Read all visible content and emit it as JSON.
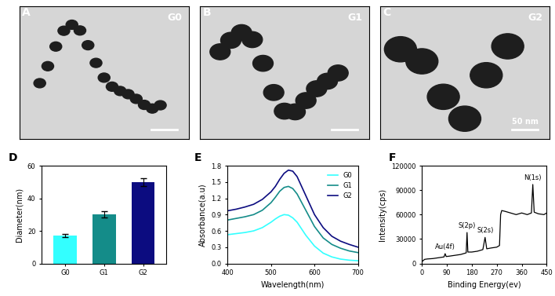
{
  "images": [
    {
      "panel": "A",
      "label": "G0"
    },
    {
      "panel": "B",
      "label": "G1"
    },
    {
      "panel": "C",
      "label": "G2",
      "scale_bar": "50 nm"
    }
  ],
  "chart_data": [
    {
      "type": "bar",
      "title": "D",
      "categories": [
        "G0",
        "G1",
        "G2"
      ],
      "values": [
        17,
        30,
        50
      ],
      "errors": [
        1,
        2,
        2.5
      ],
      "colors": [
        "#33ffff",
        "#148c89",
        "#0c0c80"
      ],
      "ylabel": "Diameter(nm)",
      "ylim": [
        0,
        60
      ],
      "yticks": [
        0,
        20,
        40,
        60
      ]
    },
    {
      "type": "line",
      "title": "E",
      "x": [
        400,
        420,
        440,
        460,
        480,
        500,
        510,
        520,
        530,
        540,
        550,
        560,
        580,
        600,
        620,
        640,
        660,
        680,
        700
      ],
      "series": [
        {
          "name": "G0",
          "color": "#33ffff",
          "values": [
            0.53,
            0.55,
            0.57,
            0.6,
            0.66,
            0.76,
            0.82,
            0.87,
            0.9,
            0.89,
            0.84,
            0.76,
            0.52,
            0.32,
            0.19,
            0.12,
            0.08,
            0.06,
            0.05
          ]
        },
        {
          "name": "G1",
          "color": "#148c89",
          "values": [
            0.8,
            0.83,
            0.86,
            0.9,
            0.98,
            1.12,
            1.22,
            1.33,
            1.4,
            1.42,
            1.38,
            1.28,
            0.98,
            0.68,
            0.47,
            0.35,
            0.28,
            0.23,
            0.2
          ]
        },
        {
          "name": "G2",
          "color": "#0c0c80",
          "values": [
            0.97,
            1.0,
            1.04,
            1.09,
            1.18,
            1.32,
            1.42,
            1.55,
            1.66,
            1.72,
            1.7,
            1.6,
            1.25,
            0.9,
            0.66,
            0.5,
            0.41,
            0.35,
            0.3
          ]
        }
      ],
      "xlabel": "Wavelength(nm)",
      "ylabel": "Absorbance(a.u)",
      "xlim": [
        400,
        700
      ],
      "xticks": [
        400,
        500,
        600,
        700
      ],
      "ylim": [
        0,
        1.8
      ],
      "yticks": [
        0.0,
        0.3,
        0.6,
        0.9,
        1.2,
        1.5,
        1.8
      ],
      "legend": "upper right"
    },
    {
      "type": "line",
      "title": "F",
      "color": "#000000",
      "x": [
        0,
        10,
        20,
        40,
        60,
        80,
        84,
        88,
        100,
        120,
        140,
        160,
        163,
        166,
        180,
        200,
        220,
        228,
        234,
        250,
        270,
        280,
        284,
        288,
        300,
        320,
        340,
        360,
        380,
        395,
        400,
        405,
        420,
        440,
        450
      ],
      "values": [
        2000,
        5000,
        5500,
        6000,
        7000,
        8000,
        12000,
        8500,
        9000,
        10000,
        11000,
        13000,
        38000,
        14000,
        14000,
        15000,
        17000,
        32000,
        18000,
        19000,
        20000,
        22000,
        60000,
        65000,
        64000,
        62000,
        60000,
        62000,
        60000,
        62000,
        97000,
        63000,
        61000,
        60000,
        62000
      ],
      "annotations": [
        {
          "text": "Au(4f)",
          "x": 84,
          "y": 12000
        },
        {
          "text": "S(2p)",
          "x": 163,
          "y": 38000
        },
        {
          "text": "S(2s)",
          "x": 228,
          "y": 32000
        },
        {
          "text": "N(1s)",
          "x": 400,
          "y": 97000
        }
      ],
      "xlabel": "Binding Energy(ev)",
      "ylabel": "Intensity(cps)",
      "xlim": [
        0,
        450
      ],
      "xticks": [
        0,
        90,
        180,
        270,
        360,
        450
      ],
      "ylim": [
        0,
        120000
      ],
      "yticks": [
        0,
        30000,
        60000,
        90000,
        120000
      ]
    }
  ]
}
